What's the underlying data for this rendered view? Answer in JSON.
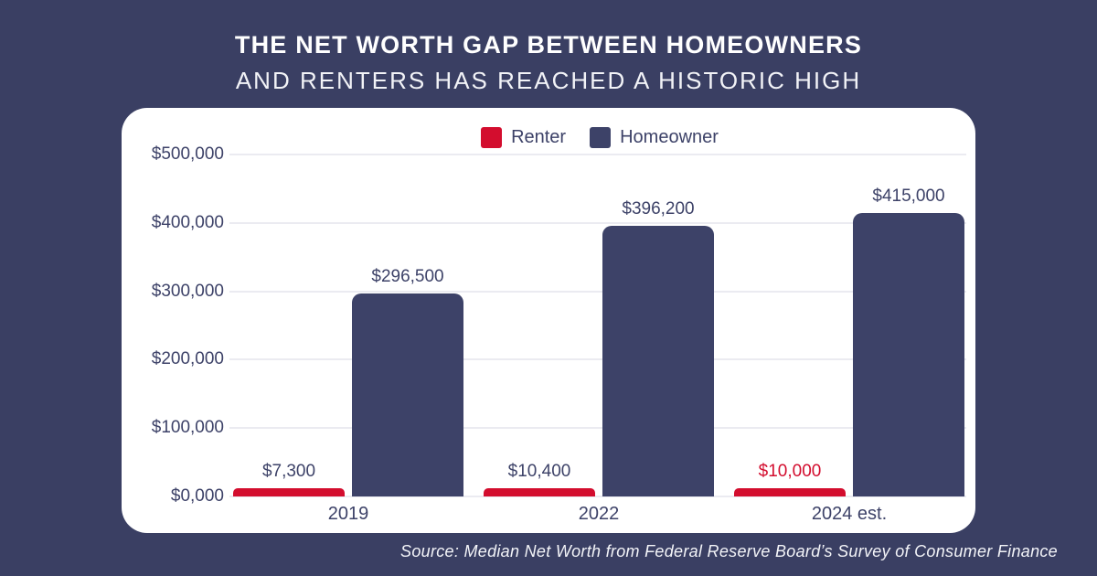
{
  "title": {
    "line1": "THE NET WORTH GAP BETWEEN HOMEOWNERS",
    "line2": "AND RENTERS HAS REACHED A HISTORIC HIGH"
  },
  "source": "Source: Median Net Worth from Federal Reserve Board’s Survey of Consumer Finance",
  "colors": {
    "background": "#3A3F63",
    "card": "#FFFFFF",
    "renter_red": "#D30D2E",
    "homeowner_navy": "#3D4268",
    "text_navy": "#3D4268",
    "gridline": "#EBEBF1",
    "title_text": "#FFFFFF"
  },
  "legend": {
    "items": [
      {
        "label": "Renter",
        "color": "#D30D2E"
      },
      {
        "label": "Homeowner",
        "color": "#3D4268"
      }
    ]
  },
  "chart_data": {
    "type": "bar",
    "title": "THE NET WORTH GAP BETWEEN HOMEOWNERS AND RENTERS HAS REACHED A HISTORIC HIGH",
    "categories": [
      "2019",
      "2022",
      "2024 est."
    ],
    "series": [
      {
        "name": "Renter",
        "color": "#D30D2E",
        "values": [
          7300,
          10400,
          10000
        ],
        "labels": [
          "$7,300",
          "$10,400",
          "$10,000"
        ],
        "label_colors": [
          "#3D4268",
          "#3D4268",
          "#D30D2E"
        ]
      },
      {
        "name": "Homeowner",
        "color": "#3D4268",
        "values": [
          296500,
          396200,
          415000
        ],
        "labels": [
          "$296,500",
          "$396,200",
          "$415,000"
        ],
        "label_colors": [
          "#3D4268",
          "#3D4268",
          "#3D4268"
        ]
      }
    ],
    "ylim": [
      0,
      500000
    ],
    "ytick_step": 100000,
    "ytick_labels": [
      "$0,000",
      "$100,000",
      "$200,000",
      "$300,000",
      "$400,000",
      "$500,000"
    ],
    "grid": true,
    "legend_position": "top-center",
    "source": "Source: Median Net Worth from Federal Reserve Board’s Survey of Consumer Finance"
  }
}
